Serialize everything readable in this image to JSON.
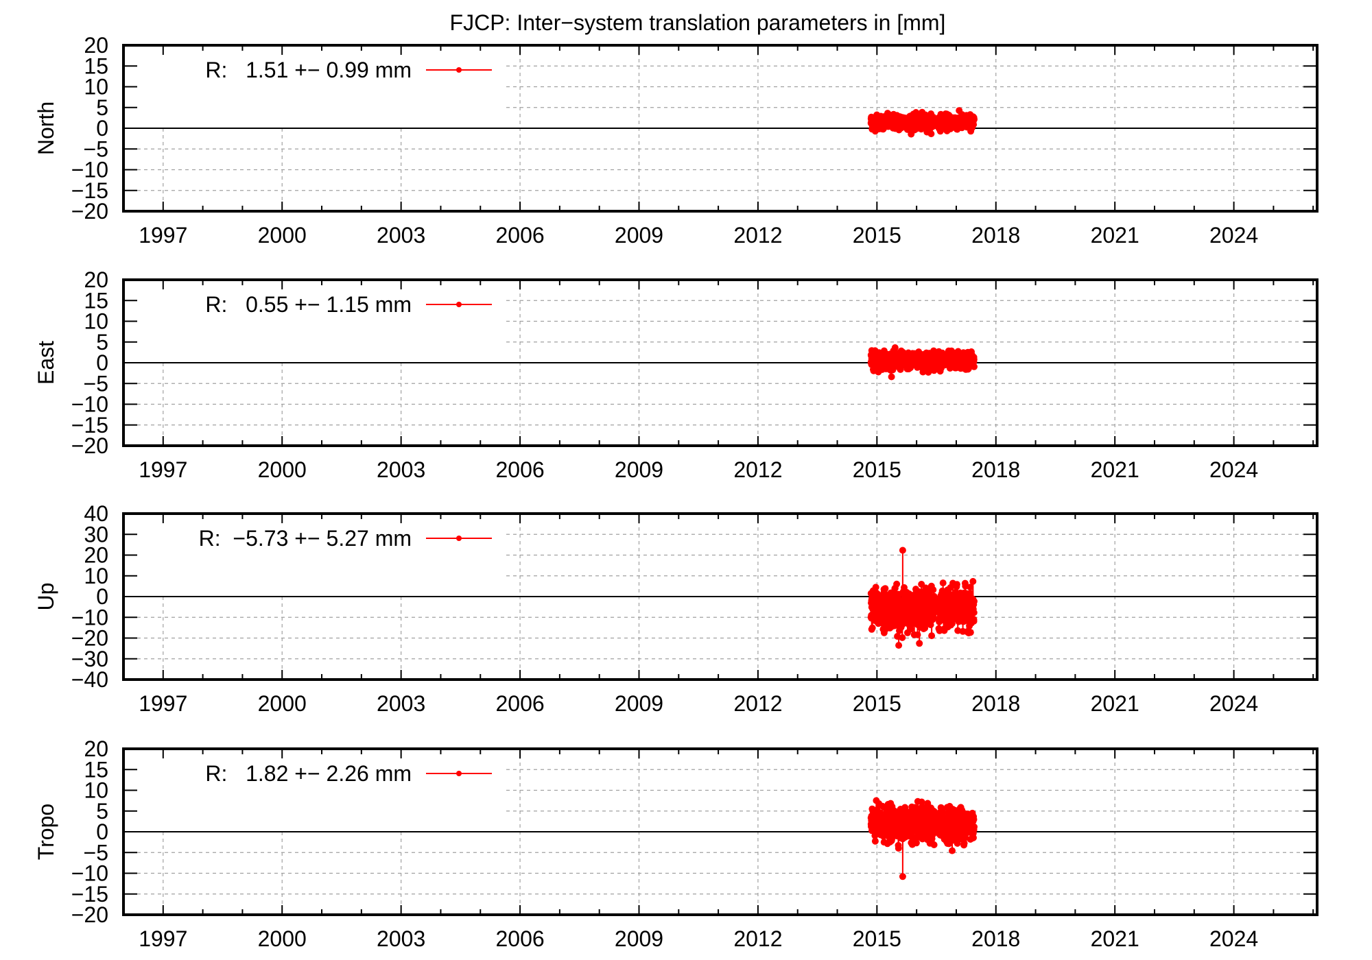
{
  "title": "FJCP: Inter−system translation parameters in [mm]",
  "colors": {
    "series": "#ff0000",
    "frame": "#000000",
    "grid": "#a0a0a0",
    "background": "#ffffff"
  },
  "chart_data": [
    {
      "type": "line",
      "title": "FJCP: Inter−system translation parameters in [mm]",
      "ylabel": "North",
      "xlabel": "",
      "xlim": [
        1996.0,
        2026.1
      ],
      "ylim": [
        -20,
        20
      ],
      "yticks": [
        -20,
        -15,
        -10,
        -5,
        0,
        5,
        10,
        15,
        20
      ],
      "ytick_labels": [
        "−20",
        "−15",
        "−10",
        "−5",
        "0",
        "5",
        "10",
        "15",
        "20"
      ],
      "xticks": [
        1997,
        2000,
        2003,
        2006,
        2009,
        2012,
        2015,
        2018,
        2021,
        2024
      ],
      "grid": true,
      "legend": {
        "label": "R:   1.51 +− 0.99 mm",
        "position": "upper-left"
      },
      "series": [
        {
          "name": "R",
          "mean": 1.51,
          "std": 0.99,
          "x_start": 2014.85,
          "x_end": 2017.45,
          "gap": [
            2016.45,
            2016.55
          ],
          "y_min": -2.2,
          "y_max": 4.7
        }
      ]
    },
    {
      "type": "line",
      "ylabel": "East",
      "xlabel": "",
      "xlim": [
        1996.0,
        2026.1
      ],
      "ylim": [
        -20,
        20
      ],
      "yticks": [
        -20,
        -15,
        -10,
        -5,
        0,
        5,
        10,
        15,
        20
      ],
      "ytick_labels": [
        "−20",
        "−15",
        "−10",
        "−5",
        "0",
        "5",
        "10",
        "15",
        "20"
      ],
      "xticks": [
        1997,
        2000,
        2003,
        2006,
        2009,
        2012,
        2015,
        2018,
        2021,
        2024
      ],
      "grid": true,
      "legend": {
        "label": "R:   0.55 +− 1.15 mm",
        "position": "upper-left"
      },
      "series": [
        {
          "name": "R",
          "mean": 0.55,
          "std": 1.15,
          "x_start": 2014.85,
          "x_end": 2017.45,
          "gap": [
            2016.45,
            2016.55
          ],
          "y_min": -3.6,
          "y_max": 4.7
        }
      ]
    },
    {
      "type": "line",
      "ylabel": "Up",
      "xlabel": "",
      "xlim": [
        1996.0,
        2026.1
      ],
      "ylim": [
        -40,
        40
      ],
      "yticks": [
        -40,
        -30,
        -20,
        -10,
        0,
        10,
        20,
        30,
        40
      ],
      "ytick_labels": [
        "−40",
        "−30",
        "−20",
        "−10",
        "0",
        "10",
        "20",
        "30",
        "40"
      ],
      "xticks": [
        1997,
        2000,
        2003,
        2006,
        2009,
        2012,
        2015,
        2018,
        2021,
        2024
      ],
      "grid": true,
      "legend": {
        "label": "R:  −5.73 +− 5.27 mm",
        "position": "upper-left"
      },
      "series": [
        {
          "name": "R",
          "mean": -5.73,
          "std": 5.27,
          "x_start": 2014.85,
          "x_end": 2017.45,
          "gap": [
            2016.45,
            2016.55
          ],
          "y_min": -24,
          "y_max": 22,
          "outliers": [
            [
              2015.65,
              22.3
            ],
            [
              2015.55,
              -23.5
            ]
          ]
        }
      ]
    },
    {
      "type": "line",
      "ylabel": "Tropo",
      "xlabel": "",
      "xlim": [
        1996.0,
        2026.1
      ],
      "ylim": [
        -20,
        20
      ],
      "yticks": [
        -20,
        -15,
        -10,
        -5,
        0,
        5,
        10,
        15,
        20
      ],
      "ytick_labels": [
        "−20",
        "−15",
        "−10",
        "−5",
        "0",
        "5",
        "10",
        "15",
        "20"
      ],
      "xticks": [
        1997,
        2000,
        2003,
        2006,
        2009,
        2012,
        2015,
        2018,
        2021,
        2024
      ],
      "grid": true,
      "legend": {
        "label": "R:   1.82 +− 2.26 mm",
        "position": "upper-left"
      },
      "series": [
        {
          "name": "R",
          "mean": 1.82,
          "std": 2.26,
          "x_start": 2014.85,
          "x_end": 2017.45,
          "gap": [
            2016.45,
            2016.55
          ],
          "y_min": -11,
          "y_max": 10,
          "outliers": [
            [
              2015.65,
              -10.8
            ],
            [
              2014.88,
              5.5
            ]
          ]
        }
      ]
    }
  ],
  "panels": [
    {
      "ylabel": "North",
      "legend": "R:   1.51 +− 0.99 mm"
    },
    {
      "ylabel": "East",
      "legend": "R:   0.55 +− 1.15 mm"
    },
    {
      "ylabel": "Up",
      "legend": "R:  −5.73 +− 5.27 mm"
    },
    {
      "ylabel": "Tropo",
      "legend": "R:   1.82 +− 2.26 mm"
    }
  ]
}
